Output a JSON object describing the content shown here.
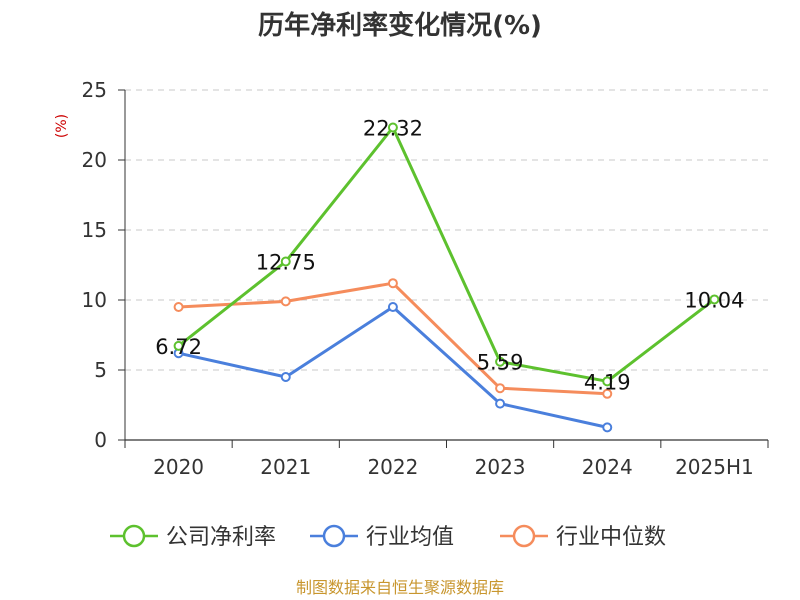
{
  "chart_data": {
    "type": "line",
    "title": "历年净利率变化情况(%)",
    "xlabel": "",
    "ylabel": "(%)",
    "categories": [
      "2020",
      "2021",
      "2022",
      "2023",
      "2024",
      "2025H1"
    ],
    "ylim": [
      0,
      25
    ],
    "yticks": [
      0,
      5,
      10,
      15,
      20,
      25
    ],
    "grid": true,
    "legend_position": "bottom",
    "series": [
      {
        "name": "公司净利率",
        "color": "#5dc12e",
        "values": [
          6.72,
          12.75,
          22.32,
          5.59,
          4.19,
          10.04
        ],
        "data_labels": [
          "6.72",
          "12.75",
          "22.32",
          "5.59",
          "4.19",
          "10.04"
        ]
      },
      {
        "name": "行业均值",
        "color": "#4a7fdc",
        "values": [
          6.2,
          4.5,
          9.5,
          2.6,
          0.9,
          null
        ]
      },
      {
        "name": "行业中位数",
        "color": "#f58c5c",
        "values": [
          9.5,
          9.9,
          11.2,
          3.7,
          3.3,
          null
        ]
      }
    ]
  },
  "source_note": "制图数据来自恒生聚源数据库"
}
